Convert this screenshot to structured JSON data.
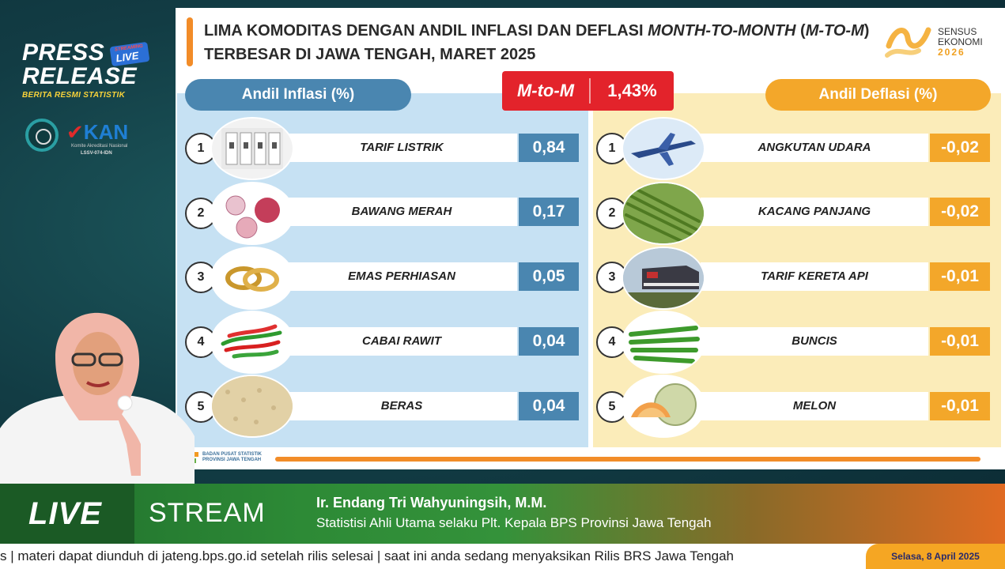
{
  "branding": {
    "press": "PRESS",
    "release": "RELEASE",
    "live_badge": "LIVE",
    "live_badge_small": "STREAMING",
    "subtitle": "BERITA RESMI STATISTIK",
    "kan": "KAN",
    "kan_sub": "Komite Akreditasi Nasional",
    "kan_code": "LSSV-074-IDN"
  },
  "slide": {
    "title_line1_prefix": "LIMA KOMODITAS DENGAN ANDIL INFLASI DAN DEFLASI ",
    "title_line1_italic": "MONTH-TO-MONTH",
    "title_line1_mid": " (",
    "title_line1_italic2": "M-TO-M",
    "title_line1_suffix": ")",
    "title_line2": "TERBESAR DI JAWA TENGAH, MARET 2025",
    "sensus_line1": "SENSUS",
    "sensus_line2": "EKONOMI",
    "sensus_year": "2026",
    "inflasi_header": "Andil Inflasi (%)",
    "deflasi_header": "Andil Deflasi (%)",
    "mtom_label": "M-to-M",
    "mtom_value": "1,43%",
    "bps_footer_line1": "BADAN PUSAT STATISTIK",
    "bps_footer_line2": "PROVINSI JAWA TENGAH",
    "inflasi": [
      {
        "rank": "1",
        "name": "TARIF LISTRIK",
        "value": "0,84",
        "icon": "electric-breaker-icon"
      },
      {
        "rank": "2",
        "name": "BAWANG MERAH",
        "value": "0,17",
        "icon": "shallot-icon"
      },
      {
        "rank": "3",
        "name": "EMAS PERHIASAN",
        "value": "0,05",
        "icon": "gold-ring-icon"
      },
      {
        "rank": "4",
        "name": "CABAI RAWIT",
        "value": "0,04",
        "icon": "chili-icon"
      },
      {
        "rank": "5",
        "name": "BERAS",
        "value": "0,04",
        "icon": "rice-icon"
      }
    ],
    "deflasi": [
      {
        "rank": "1",
        "name": "ANGKUTAN UDARA",
        "value": "-0,02",
        "icon": "airplane-icon"
      },
      {
        "rank": "2",
        "name": "KACANG PANJANG",
        "value": "-0,02",
        "icon": "long-bean-icon"
      },
      {
        "rank": "3",
        "name": "TARIF KERETA API",
        "value": "-0,01",
        "icon": "train-icon"
      },
      {
        "rank": "4",
        "name": "BUNCIS",
        "value": "-0,01",
        "icon": "green-bean-icon"
      },
      {
        "rank": "5",
        "name": "MELON",
        "value": "-0,01",
        "icon": "melon-icon"
      }
    ]
  },
  "stream": {
    "live": "LIVE",
    "stream": "STREAM",
    "name": "Ir. Endang Tri Wahyuningsih, M.M.",
    "role": "Statistisi Ahli Utama selaku Plt. Kepala BPS Provinsi Jawa Tengah",
    "ticker": "s  |  materi dapat diunduh di jateng.bps.go.id setelah rilis selesai   |   saat ini anda sedang menyaksikan Rilis BRS Jawa Tengah",
    "date": "Selasa, 8 April 2025"
  }
}
